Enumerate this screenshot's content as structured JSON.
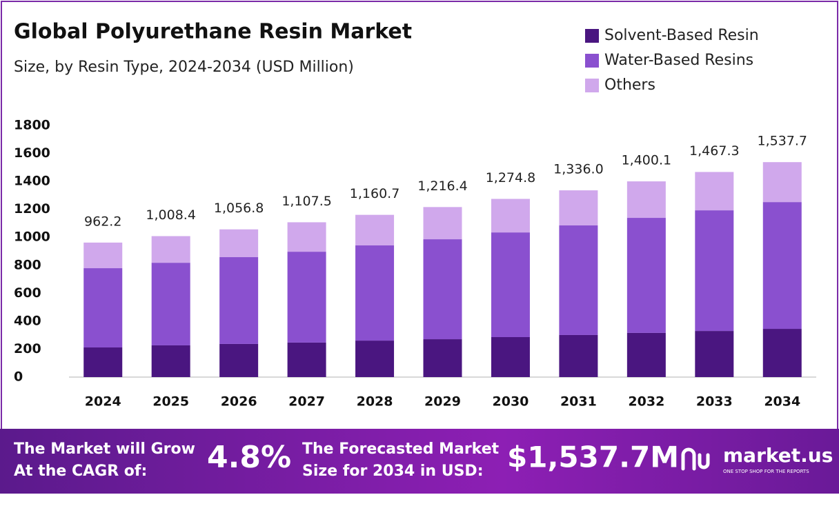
{
  "chart_data": {
    "type": "stacked-bar",
    "title": "Global Polyurethane Resin Market",
    "subtitle": "Size, by Resin Type, 2024-2034 (USD Million)",
    "categories": [
      "2024",
      "2025",
      "2026",
      "2027",
      "2028",
      "2029",
      "2030",
      "2031",
      "2032",
      "2033",
      "2034"
    ],
    "series": [
      {
        "name": "Solvent-Based Resin",
        "color": "#4a1680",
        "values": [
          212,
          227,
          237,
          247,
          261,
          271,
          286,
          301,
          316,
          330,
          345
        ]
      },
      {
        "name": "Water-Based Resins",
        "color": "#8a50cf",
        "values": [
          567,
          591,
          621,
          650,
          681,
          715,
          749,
          784,
          823,
          863,
          907
        ]
      },
      {
        "name": "Others",
        "color": "#d0a8ec",
        "values": [
          183.2,
          190.4,
          198.8,
          210.5,
          218.7,
          230.4,
          239.8,
          251,
          261.1,
          274.3,
          285.7
        ]
      }
    ],
    "totals": {
      "values": [
        962.2,
        1008.4,
        1056.8,
        1107.5,
        1160.7,
        1216.4,
        1274.8,
        1336.0,
        1400.1,
        1467.3,
        1537.7
      ],
      "value_labels": [
        "962.2",
        "1,008.4",
        "1,056.8",
        "1,107.5",
        "1,160.7",
        "1,216.4",
        "1,274.8",
        "1,336.0",
        "1,400.1",
        "1,467.3",
        "1,537.7"
      ]
    },
    "ylim": [
      0,
      1800
    ],
    "yticks": [
      0,
      200,
      400,
      600,
      800,
      1000,
      1200,
      1400,
      1600,
      1800
    ],
    "grid": false,
    "legend": "top-right"
  },
  "footer": {
    "cagr_text": [
      "The Market will Grow",
      "At the CAGR of:"
    ],
    "cagr": "4.8%",
    "forecast_text": [
      "The Forecasted Market",
      "Size for 2034 in USD:"
    ],
    "forecast": "$1,537.7M",
    "brand": "market.us",
    "tagline": "ONE STOP SHOP FOR THE REPORTS"
  }
}
